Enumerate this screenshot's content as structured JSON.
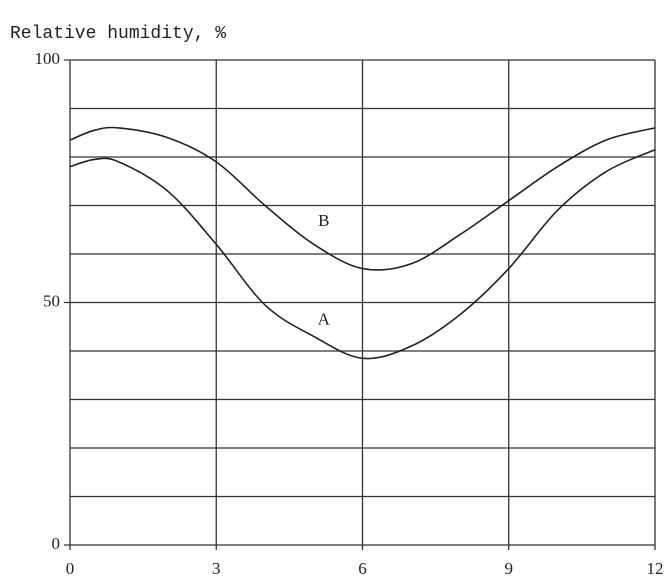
{
  "chart_data": {
    "type": "line",
    "ylabel": "Relative humidity, %",
    "x": [
      0,
      0.5,
      1,
      2,
      3,
      4,
      5,
      6,
      7,
      8,
      9,
      10,
      11,
      12
    ],
    "series": [
      {
        "name": "A",
        "color": "#222",
        "values": [
          78,
          79.5,
          79,
          73,
          62,
          49.5,
          43,
          38.5,
          41,
          47.5,
          57,
          69,
          77,
          81.5
        ]
      },
      {
        "name": "B",
        "color": "#222",
        "values": [
          83.5,
          85.5,
          86,
          84,
          79,
          70,
          62,
          57,
          58,
          64,
          71,
          78,
          83.5,
          86
        ]
      }
    ],
    "xlim": [
      0,
      12
    ],
    "xticks": [
      0,
      3,
      6,
      9,
      12
    ],
    "ylim": [
      0,
      100
    ],
    "yticks": [
      0,
      50,
      100
    ],
    "ygrid": [
      10,
      20,
      30,
      40,
      60,
      70,
      80,
      90
    ],
    "grid": true
  }
}
